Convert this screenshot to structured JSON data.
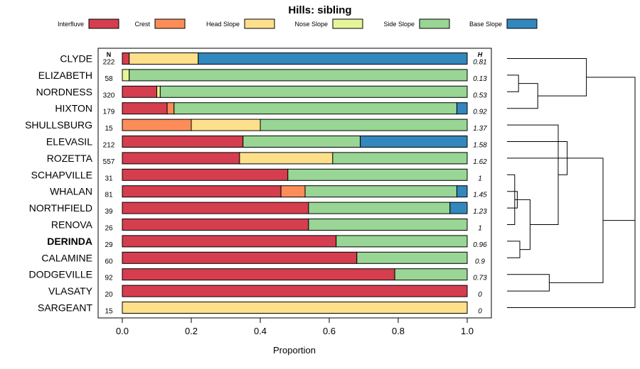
{
  "chart_data": {
    "type": "stacked-bar-horizontal",
    "title": "Hills: sibling",
    "xlabel": "Proportion",
    "xlim": [
      0,
      1
    ],
    "x_ticks": [
      0,
      0.2,
      0.4,
      0.6,
      0.8,
      1
    ],
    "x_tick_labels": [
      "0.0",
      "0.2",
      "0.4",
      "0.6",
      "0.8",
      "1.0"
    ],
    "n_header": "N",
    "h_header": "H",
    "series": [
      {
        "name": "Interfluve",
        "color": "#D53E4F"
      },
      {
        "name": "Crest",
        "color": "#FC8D59"
      },
      {
        "name": "Head Slope",
        "color": "#FEE08B"
      },
      {
        "name": "Nose Slope",
        "color": "#E6F598"
      },
      {
        "name": "Side Slope",
        "color": "#99D594"
      },
      {
        "name": "Base Slope",
        "color": "#3288BD"
      }
    ],
    "rows": [
      {
        "name": "CLYDE",
        "n": "222",
        "h": "0.81",
        "bold": false,
        "values": [
          0.02,
          0.0,
          0.2,
          0.0,
          0.0,
          0.78
        ]
      },
      {
        "name": "ELIZABETH",
        "n": "58",
        "h": "0.13",
        "bold": false,
        "values": [
          0.0,
          0.0,
          0.0,
          0.02,
          0.98,
          0.0
        ]
      },
      {
        "name": "NORDNESS",
        "n": "320",
        "h": "0.53",
        "bold": false,
        "values": [
          0.1,
          0.0,
          0.0,
          0.01,
          0.89,
          0.0
        ]
      },
      {
        "name": "HIXTON",
        "n": "179",
        "h": "0.92",
        "bold": false,
        "values": [
          0.13,
          0.02,
          0.0,
          0.0,
          0.82,
          0.03
        ]
      },
      {
        "name": "SHULLSBURG",
        "n": "15",
        "h": "1.37",
        "bold": false,
        "values": [
          0.0,
          0.2,
          0.2,
          0.0,
          0.6,
          0.0
        ]
      },
      {
        "name": "ELEVASIL",
        "n": "212",
        "h": "1.58",
        "bold": false,
        "values": [
          0.35,
          0.0,
          0.0,
          0.0,
          0.34,
          0.31
        ]
      },
      {
        "name": "ROZETTA",
        "n": "557",
        "h": "1.62",
        "bold": false,
        "values": [
          0.34,
          0.0,
          0.27,
          0.0,
          0.39,
          0.0
        ]
      },
      {
        "name": "SCHAPVILLE",
        "n": "31",
        "h": "1",
        "bold": false,
        "values": [
          0.48,
          0.0,
          0.0,
          0.0,
          0.52,
          0.0
        ]
      },
      {
        "name": "WHALAN",
        "n": "81",
        "h": "1.45",
        "bold": false,
        "values": [
          0.46,
          0.07,
          0.0,
          0.0,
          0.44,
          0.03
        ]
      },
      {
        "name": "NORTHFIELD",
        "n": "39",
        "h": "1.23",
        "bold": false,
        "values": [
          0.54,
          0.0,
          0.0,
          0.0,
          0.41,
          0.05
        ]
      },
      {
        "name": "RENOVA",
        "n": "26",
        "h": "1",
        "bold": false,
        "values": [
          0.54,
          0.0,
          0.0,
          0.0,
          0.46,
          0.0
        ]
      },
      {
        "name": "DERINDA",
        "n": "29",
        "h": "0.96",
        "bold": true,
        "values": [
          0.62,
          0.0,
          0.0,
          0.0,
          0.38,
          0.0
        ]
      },
      {
        "name": "CALAMINE",
        "n": "60",
        "h": "0.9",
        "bold": false,
        "values": [
          0.68,
          0.0,
          0.0,
          0.0,
          0.32,
          0.0
        ]
      },
      {
        "name": "DODGEVILLE",
        "n": "92",
        "h": "0.73",
        "bold": false,
        "values": [
          0.79,
          0.0,
          0.0,
          0.0,
          0.21,
          0.0
        ]
      },
      {
        "name": "VLASATY",
        "n": "20",
        "h": "0",
        "bold": false,
        "values": [
          1.0,
          0.0,
          0.0,
          0.0,
          0.0,
          0.0
        ]
      },
      {
        "name": "SARGEANT",
        "n": "15",
        "h": "0",
        "bold": false,
        "values": [
          0.0,
          0.0,
          1.0,
          0.0,
          0.0,
          0.0
        ]
      }
    ],
    "dendrogram": {
      "description": "hierarchical clustering of rows by landform proportions",
      "merges": [
        {
          "a": "row:1",
          "b": "row:2",
          "height": 0.09
        },
        {
          "a": "node:0",
          "b": "row:3",
          "height": 0.24
        },
        {
          "a": "node:1",
          "b": "row:0",
          "height": 0.62
        },
        {
          "a": "row:7",
          "b": "row:10",
          "height": 0.06
        },
        {
          "a": "row:8",
          "b": "row:9",
          "height": 0.08
        },
        {
          "a": "node:3",
          "b": "node:4",
          "height": 0.13
        },
        {
          "a": "row:11",
          "b": "row:12",
          "height": 0.1
        },
        {
          "a": "node:5",
          "b": "node:6",
          "height": 0.18
        },
        {
          "a": "node:7",
          "b": "row:4",
          "height": 0.4
        },
        {
          "a": "row:5",
          "b": "node:8",
          "height": 0.47
        },
        {
          "a": "row:6",
          "b": "node:9",
          "height": 0.5
        },
        {
          "a": "row:13",
          "b": "row:14",
          "height": 0.33
        },
        {
          "a": "node:10",
          "b": "node:11",
          "height": 0.75
        },
        {
          "a": "node:12",
          "b": "row:15",
          "height": 1.0
        },
        {
          "a": "node:2",
          "b": "node:13",
          "height": 1.0
        }
      ]
    }
  }
}
